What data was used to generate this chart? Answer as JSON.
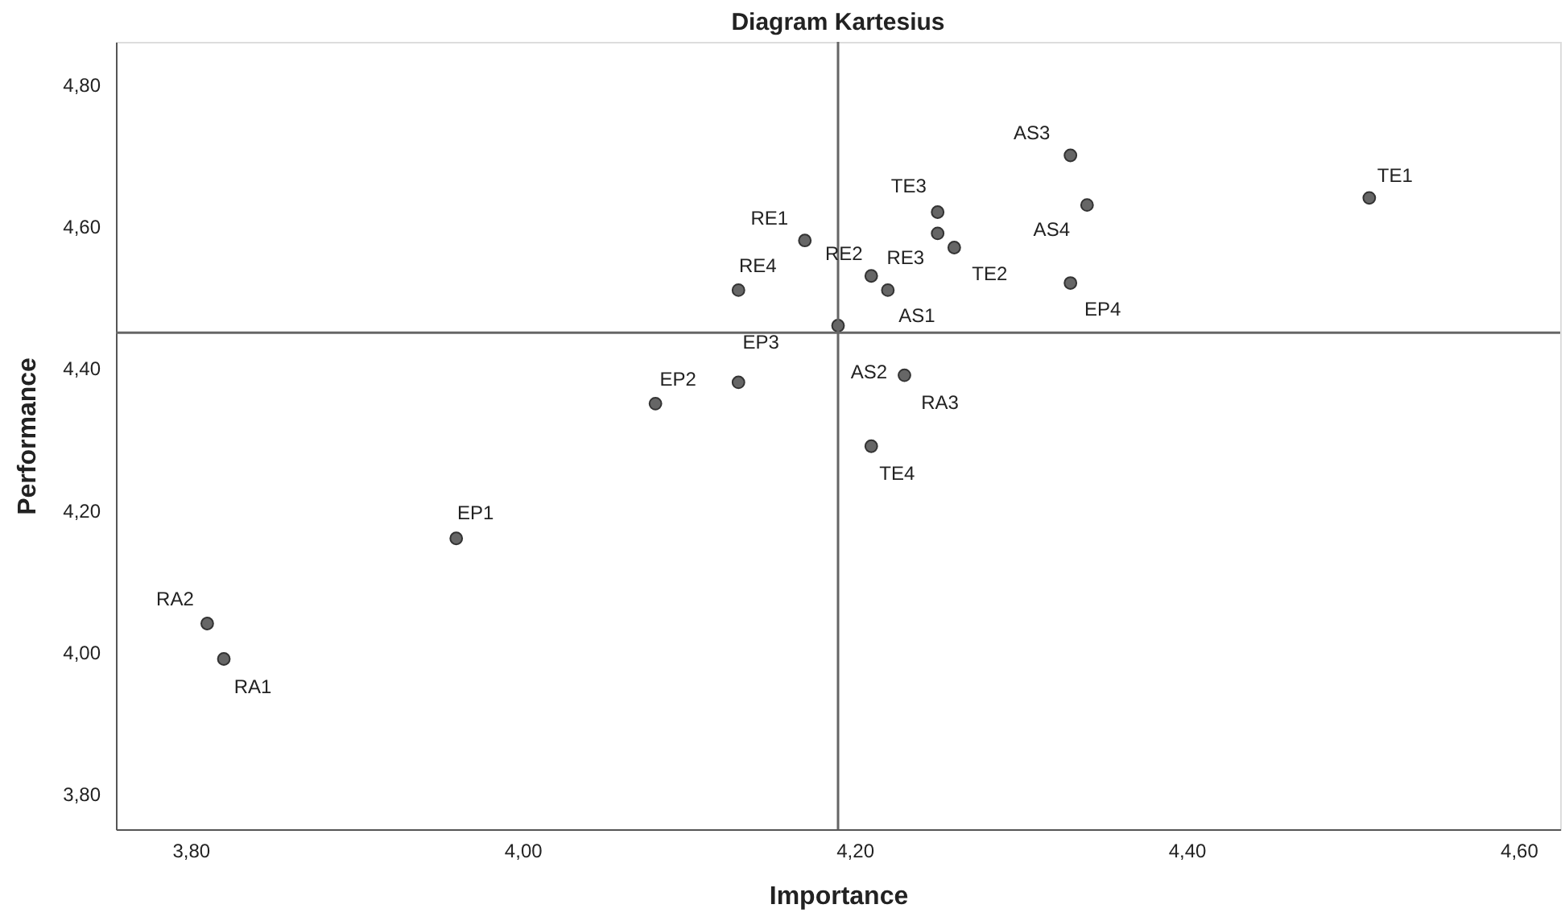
{
  "chart_data": {
    "type": "scatter",
    "title": "Diagram Kartesius",
    "xlabel": "Importance",
    "ylabel": "Performance",
    "marker": "circle",
    "series": [
      {
        "color": "#666666",
        "x": [
          4.33,
          4.34,
          4.25,
          4.25,
          4.26,
          4.33,
          4.17,
          4.13,
          4.21,
          4.22,
          4.19,
          4.13,
          4.08,
          4.23,
          4.21,
          4.51,
          3.96,
          3.81,
          3.82
        ],
        "values": [
          4.7,
          4.63,
          4.62,
          4.59,
          4.57,
          4.52,
          4.58,
          4.51,
          4.53,
          4.51,
          4.46,
          4.38,
          4.35,
          4.39,
          4.29,
          4.64,
          4.16,
          4.04,
          3.99
        ]
      }
    ],
    "annotations": [
      {
        "text": "AS3",
        "x": 4.33,
        "y": 4.7
      },
      {
        "text": "AS4",
        "x": 4.34,
        "y": 4.63
      },
      {
        "text": "TE3",
        "x": 4.25,
        "y": 4.62
      },
      {
        "text": "TE2",
        "x": 4.26,
        "y": 4.57
      },
      {
        "text": "EP4",
        "x": 4.33,
        "y": 4.52
      },
      {
        "text": "RE1",
        "x": 4.17,
        "y": 4.58
      },
      {
        "text": "RE4",
        "x": 4.13,
        "y": 4.51
      },
      {
        "text": "RE2",
        "x": 4.21,
        "y": 4.53
      },
      {
        "text": "RE3",
        "x": 4.25,
        "y": 4.59
      },
      {
        "text": "AS1",
        "x": 4.22,
        "y": 4.51
      },
      {
        "text": "EP3",
        "x": 4.13,
        "y": 4.38
      },
      {
        "text": "EP2",
        "x": 4.08,
        "y": 4.35
      },
      {
        "text": "AS2",
        "x": 4.23,
        "y": 4.39
      },
      {
        "text": "RA3",
        "x": 4.23,
        "y": 4.39
      },
      {
        "text": "TE4",
        "x": 4.21,
        "y": 4.29
      },
      {
        "text": "TE1",
        "x": 4.51,
        "y": 4.64
      },
      {
        "text": "EP1",
        "x": 3.96,
        "y": 4.16
      },
      {
        "text": "RA2",
        "x": 3.81,
        "y": 4.04
      },
      {
        "text": "RA1",
        "x": 3.82,
        "y": 3.99
      }
    ],
    "ref_lines": [
      {
        "axis": "x",
        "value": 4.19,
        "color": "#666666"
      },
      {
        "axis": "y",
        "value": 4.45,
        "color": "#666666"
      }
    ],
    "xlim": [
      3.755,
      4.625
    ],
    "ylim": [
      3.75,
      4.86
    ],
    "xticks": [
      {
        "value": 3.8,
        "label": "3,80"
      },
      {
        "value": 4.0,
        "label": "4,00"
      },
      {
        "value": 4.2,
        "label": "4,20"
      },
      {
        "value": 4.4,
        "label": "4,40"
      },
      {
        "value": 4.6,
        "label": "4,60"
      }
    ],
    "yticks": [
      {
        "value": 3.8,
        "label": "3,80"
      },
      {
        "value": 4.0,
        "label": "4,00"
      },
      {
        "value": 4.2,
        "label": "4,20"
      },
      {
        "value": 4.4,
        "label": "4,40"
      },
      {
        "value": 4.6,
        "label": "4,60"
      },
      {
        "value": 4.8,
        "label": "4,80"
      }
    ],
    "grid": false
  }
}
